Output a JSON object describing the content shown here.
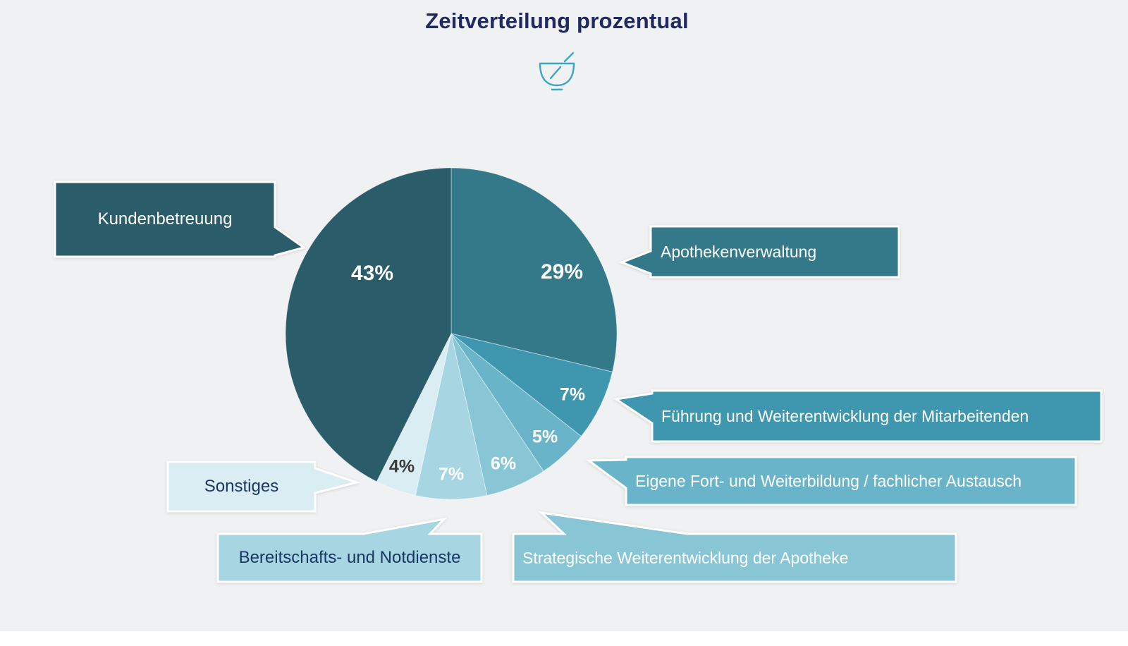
{
  "title": "Zeitverteilung prozentual",
  "icon": "mortar-pestle-icon",
  "colors": {
    "background": "#f0f1f2",
    "title_text": "#1f2a60",
    "dark_label_text": "#1c3664",
    "icon_stroke": "#3aa7c2",
    "footer_strip": "#ffffff"
  },
  "chart_data": {
    "type": "pie",
    "title": "Zeitverteilung prozentual",
    "start": "12-o'clock",
    "direction": "clockwise",
    "legend_position": "callout-labels-around-pie",
    "slices": [
      {
        "label": "Apothekenverwaltung",
        "value_pct": 29,
        "pct_label": "29%",
        "color": "#34798a",
        "pct_text_color": "#ffffff",
        "callout_text_color": "#ffffff"
      },
      {
        "label": "Führung und Weiterentwicklung der Mitarbeitenden",
        "value_pct": 7,
        "pct_label": "7%",
        "color": "#3f97af",
        "pct_text_color": "#ffffff",
        "callout_text_color": "#ffffff"
      },
      {
        "label": "Eigene Fort- und Weiterbildung / fachlicher Austausch",
        "value_pct": 5,
        "pct_label": "5%",
        "color": "#69b4c9",
        "pct_text_color": "#ffffff",
        "callout_text_color": "#ffffff"
      },
      {
        "label": "Strategische Weiterentwicklung der Apotheke",
        "value_pct": 6,
        "pct_label": "6%",
        "color": "#88c6d5",
        "pct_text_color": "#ffffff",
        "callout_text_color": "#ffffff"
      },
      {
        "label": "Bereitschafts- und Notdienste",
        "value_pct": 7,
        "pct_label": "7%",
        "color": "#a7d6e2",
        "pct_text_color": "#ffffff",
        "callout_text_color": "#1c3664"
      },
      {
        "label": "Sonstiges",
        "value_pct": 4,
        "pct_label": "4%",
        "color": "#d9edf3",
        "pct_text_color": "#3b3b3b",
        "callout_text_color": "#1c3664"
      },
      {
        "label": "Kundenbetreuung",
        "value_pct": 43,
        "pct_label": "43%",
        "color": "#2a5c6a",
        "pct_text_color": "#ffffff",
        "callout_text_color": "#ffffff"
      }
    ]
  }
}
